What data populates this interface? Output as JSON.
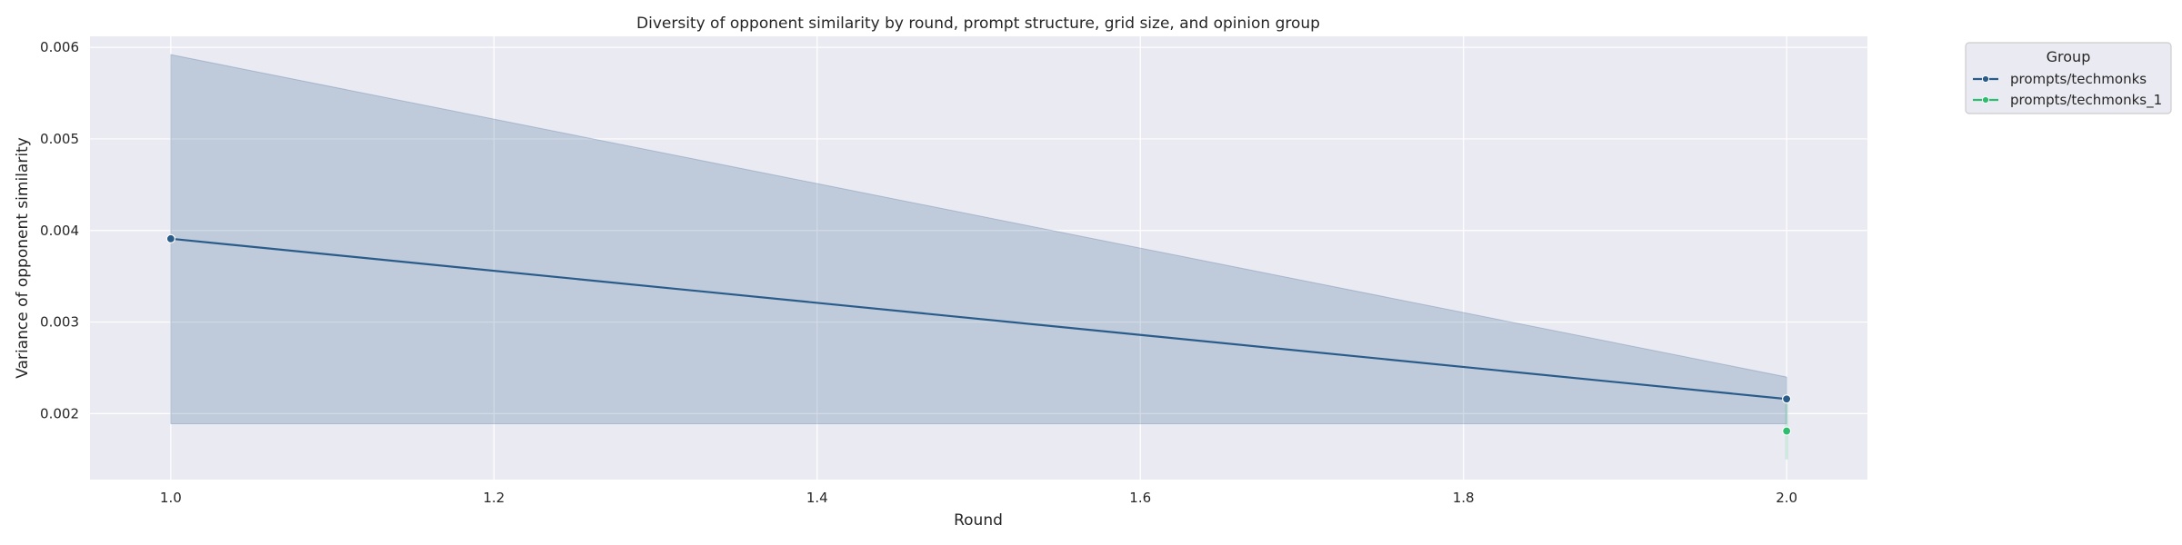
{
  "chart_data": {
    "type": "line",
    "title": "Diversity of opponent similarity by round, prompt structure, grid size, and opinion group",
    "xlabel": "Round",
    "ylabel": "Variance of opponent similarity",
    "xlim": [
      0.95,
      2.05
    ],
    "ylim": [
      0.00128,
      0.00612
    ],
    "x_ticks": [
      "1.0",
      "1.2",
      "1.4",
      "1.6",
      "1.8",
      "2.0"
    ],
    "y_ticks": [
      "0.002",
      "0.003",
      "0.004",
      "0.005",
      "0.006"
    ],
    "grid": true,
    "legend": {
      "title": "Group",
      "placement": "outside-top-right"
    },
    "series": [
      {
        "name": "prompts/techmonks",
        "color": "#2a5c8a",
        "x": [
          1.0,
          2.0
        ],
        "y": [
          0.00391,
          0.00216
        ],
        "ci_lower": [
          0.00189,
          0.00189
        ],
        "ci_upper": [
          0.00592,
          0.0024
        ]
      },
      {
        "name": "prompts/techmonks_1",
        "color": "#2dbd6e",
        "x": [
          2.0
        ],
        "y": [
          0.00181
        ],
        "ci_lower": [
          0.0015
        ],
        "ci_upper": [
          0.00212
        ]
      }
    ]
  }
}
